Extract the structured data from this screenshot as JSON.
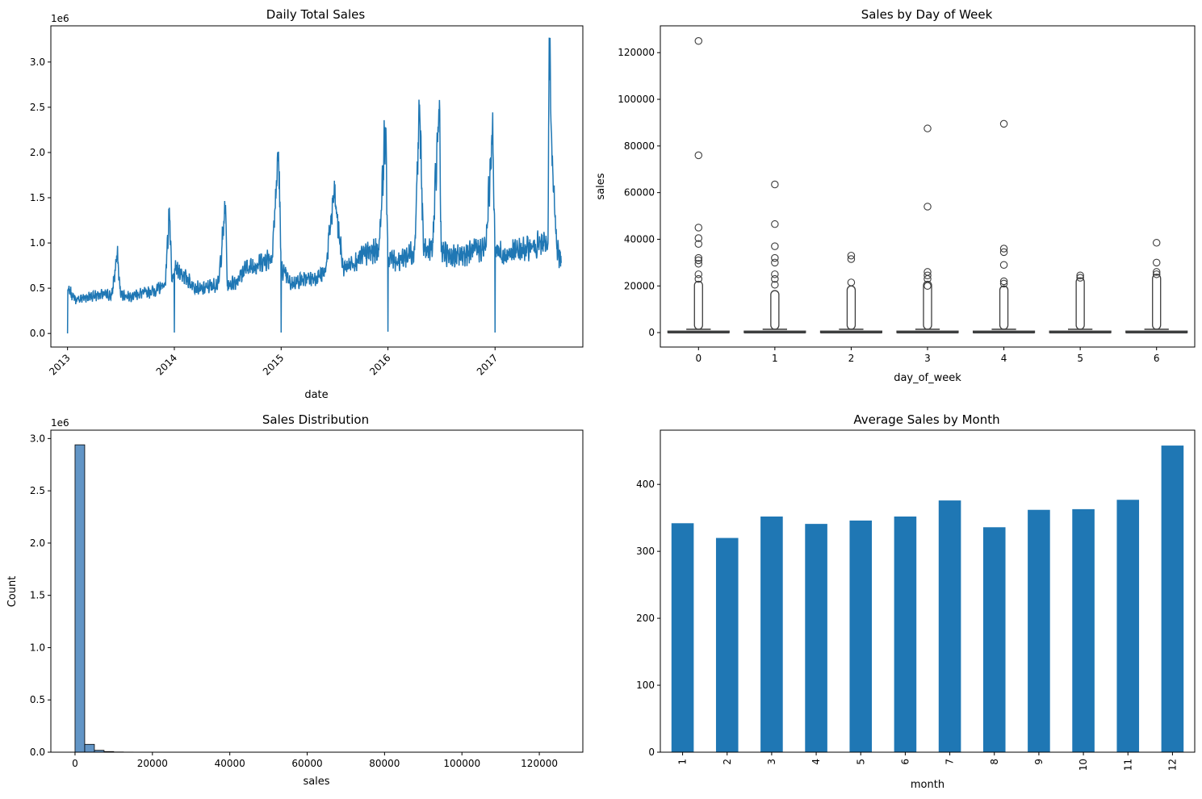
{
  "chart_data": [
    {
      "type": "line",
      "title": "Daily Total Sales",
      "xlabel": "date",
      "ylabel": "",
      "y_offset_label": "1e6",
      "xlim": [
        "2012-11-05",
        "2017-10-28"
      ],
      "ylim": [
        -0.15,
        3.4
      ],
      "x_ticks": [
        "2013",
        "2014",
        "2015",
        "2016",
        "2017"
      ],
      "x_tick_years": [
        2013,
        2014,
        2015,
        2016,
        2017
      ],
      "y_ticks": [
        "0.0",
        "0.5",
        "1.0",
        "1.5",
        "2.0",
        "2.5",
        "3.0"
      ],
      "y_tick_values": [
        0,
        0.5,
        1.0,
        1.5,
        2.0,
        2.5,
        3.0
      ],
      "color": "#1f77b4",
      "x_start": "2013-01-01",
      "x_end": "2017-08-15",
      "series": [
        {
          "x": [
            "2013-01-01",
            "2013-01-02",
            "2013-02-01",
            "2013-03-01",
            "2013-04-01",
            "2013-05-01",
            "2013-06-01",
            "2013-06-20",
            "2013-07-01",
            "2013-08-01",
            "2013-09-01",
            "2013-10-01",
            "2013-11-01",
            "2013-12-01",
            "2013-12-15",
            "2013-12-23",
            "2013-12-31",
            "2014-01-01",
            "2014-01-02",
            "2014-02-01",
            "2014-03-01",
            "2014-04-01",
            "2014-05-01",
            "2014-06-01",
            "2014-06-25",
            "2014-07-01",
            "2014-08-01",
            "2014-09-01",
            "2014-10-01",
            "2014-11-01",
            "2014-12-01",
            "2014-12-23",
            "2014-12-31",
            "2015-01-01",
            "2015-01-02",
            "2015-02-01",
            "2015-03-01",
            "2015-04-01",
            "2015-05-01",
            "2015-06-01",
            "2015-07-01",
            "2015-08-01",
            "2015-09-01",
            "2015-10-01",
            "2015-11-01",
            "2015-12-01",
            "2015-12-23",
            "2015-12-31",
            "2016-01-01",
            "2016-01-02",
            "2016-02-01",
            "2016-03-01",
            "2016-04-01",
            "2016-04-18",
            "2016-05-01",
            "2016-06-01",
            "2016-06-25",
            "2016-07-01",
            "2016-08-01",
            "2016-09-01",
            "2016-10-01",
            "2016-11-01",
            "2016-12-01",
            "2016-12-23",
            "2016-12-31",
            "2017-01-01",
            "2017-01-02",
            "2017-02-01",
            "2017-03-01",
            "2017-04-01",
            "2017-05-01",
            "2017-06-01",
            "2017-07-01",
            "2017-07-05",
            "2017-07-15",
            "2017-08-01",
            "2017-08-15"
          ],
          "y": [
            0.0,
            0.48,
            0.37,
            0.4,
            0.42,
            0.43,
            0.42,
            0.88,
            0.43,
            0.41,
            0.44,
            0.45,
            0.48,
            0.55,
            1.39,
            0.58,
            0.62,
            0.01,
            0.72,
            0.65,
            0.55,
            0.48,
            0.52,
            0.55,
            1.42,
            0.52,
            0.58,
            0.72,
            0.75,
            0.8,
            0.85,
            2.01,
            0.9,
            0.01,
            0.72,
            0.55,
            0.58,
            0.6,
            0.62,
            0.68,
            1.55,
            0.72,
            0.78,
            0.85,
            0.9,
            0.92,
            2.28,
            1.05,
            0.02,
            0.85,
            0.8,
            0.85,
            0.92,
            2.53,
            0.95,
            0.92,
            2.58,
            0.9,
            0.85,
            0.85,
            0.9,
            0.92,
            0.95,
            2.27,
            1.05,
            0.01,
            0.95,
            0.85,
            0.9,
            0.92,
            0.95,
            0.98,
            1.0,
            3.27,
            1.85,
            0.95,
            0.78
          ]
        }
      ]
    },
    {
      "type": "box",
      "title": "Sales by Day of Week",
      "xlabel": "day_of_week",
      "ylabel": "sales",
      "categories": [
        "0",
        "1",
        "2",
        "3",
        "4",
        "5",
        "6"
      ],
      "ylim": [
        -6200,
        131500
      ],
      "y_ticks": [
        "0",
        "20000",
        "40000",
        "60000",
        "80000",
        "100000",
        "120000"
      ],
      "y_tick_values": [
        0,
        20000,
        40000,
        60000,
        80000,
        100000,
        120000
      ],
      "whisker_top": [
        1400,
        1400,
        1400,
        1400,
        1400,
        1400,
        1400
      ],
      "dense_outlier_top": [
        22000,
        18000,
        20000,
        22000,
        20000,
        23500,
        25000
      ],
      "outliers": [
        [
          125000,
          76000,
          45000,
          40500,
          38000,
          32000,
          31000,
          29500,
          25000,
          23000
        ],
        [
          63500,
          46500,
          37000,
          32000,
          30000,
          25000,
          23000,
          20500
        ],
        [
          33000,
          31500,
          21500
        ],
        [
          87500,
          54000,
          26000,
          24500,
          23000,
          20000
        ],
        [
          89500,
          36000,
          34500,
          29000,
          22000,
          21000
        ],
        [
          24500,
          23500
        ],
        [
          38500,
          30000,
          26000,
          25000
        ]
      ]
    },
    {
      "type": "histogram",
      "title": "Sales Distribution",
      "xlabel": "sales",
      "ylabel": "Count",
      "y_offset_label": "1e6",
      "xlim": [
        -6250,
        131250
      ],
      "ylim": [
        0,
        3.08
      ],
      "x_ticks": [
        "0",
        "20000",
        "40000",
        "60000",
        "80000",
        "100000",
        "120000"
      ],
      "x_tick_values": [
        0,
        20000,
        40000,
        60000,
        80000,
        100000,
        120000
      ],
      "y_ticks": [
        "0.0",
        "0.5",
        "1.0",
        "1.5",
        "2.0",
        "2.5",
        "3.0"
      ],
      "y_tick_values": [
        0,
        0.5,
        1.0,
        1.5,
        2.0,
        2.5,
        3.0
      ],
      "bin_width": 2500,
      "bin_start": 0,
      "counts": [
        2.94,
        0.075,
        0.018,
        0.006,
        0.002,
        0.001,
        0.0004,
        0.0002,
        0.0001
      ],
      "color": "#5a8fc3"
    },
    {
      "type": "bar",
      "title": "Average Sales by Month",
      "xlabel": "month",
      "ylabel": "",
      "categories": [
        "1",
        "2",
        "3",
        "4",
        "5",
        "6",
        "7",
        "8",
        "9",
        "10",
        "11",
        "12"
      ],
      "values": [
        342,
        320,
        352,
        341,
        346,
        352,
        376,
        336,
        362,
        363,
        377,
        458
      ],
      "ylim": [
        0,
        481
      ],
      "y_ticks": [
        "0",
        "100",
        "200",
        "300",
        "400"
      ],
      "y_tick_values": [
        0,
        100,
        200,
        300,
        400
      ],
      "color": "#1f77b4"
    }
  ]
}
